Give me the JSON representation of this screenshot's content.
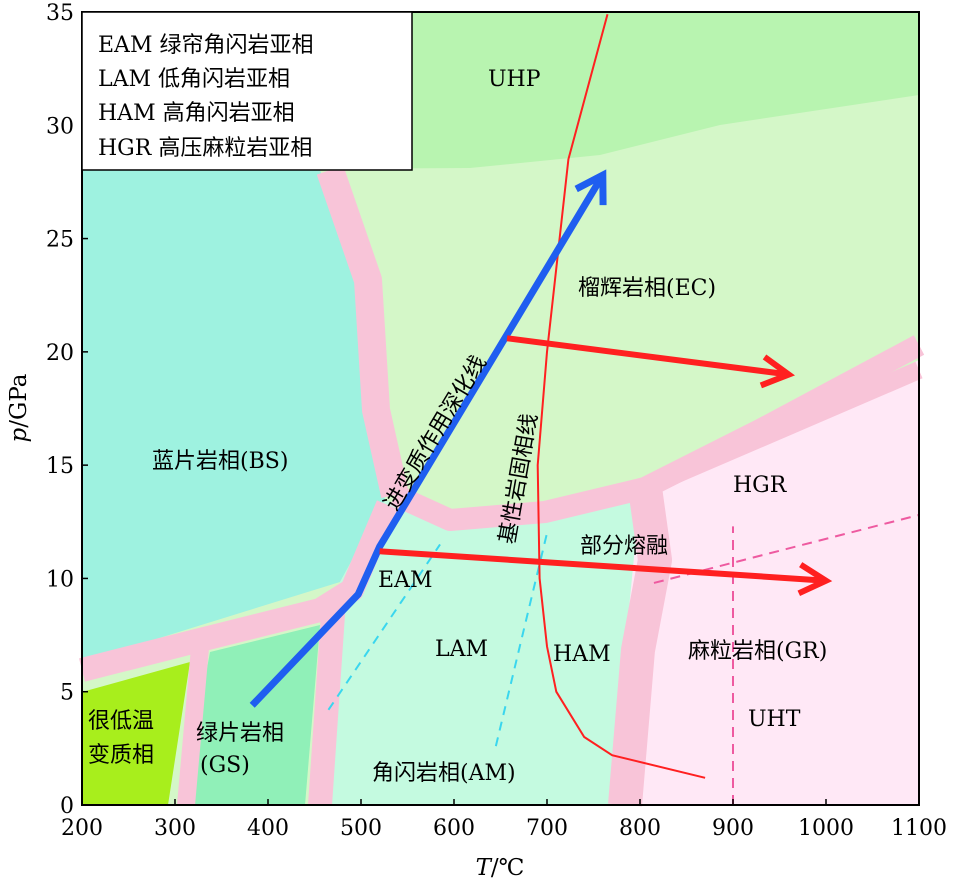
{
  "chart_data": {
    "type": "diagram",
    "x_axis": {
      "label_italic": "T",
      "label_rest": "/℃",
      "range": [
        200,
        1100
      ],
      "ticks": [
        "200",
        "300",
        "400",
        "500",
        "600",
        "700",
        "800",
        "900",
        "1000",
        "1100"
      ]
    },
    "y_axis": {
      "label_italic": "p",
      "label_rest": "/GPa",
      "range": [
        0,
        35
      ],
      "ticks": [
        "0",
        "5",
        "10",
        "15",
        "20",
        "25",
        "30",
        "35"
      ]
    },
    "legend": [
      "EAM 绿帘角闪岩亚相",
      "LAM 低角闪岩亚相",
      "HAM 高角闪岩亚相",
      "HGR 高压麻粒岩亚相"
    ],
    "facies_labels": {
      "uhp": "UHP",
      "ec": "榴辉岩相(EC)",
      "bs": "蓝片岩相(BS)",
      "hgr": "HGR",
      "eam": "EAM",
      "lam": "LAM",
      "ham": "HAM",
      "gr": "麻粒岩相(GR)",
      "uht": "UHT",
      "very_low_1": "很低温",
      "very_low_2": "变质相",
      "gs_1": "绿片岩相",
      "gs_2": "(GS)",
      "am": "角闪岩相(AM)",
      "partial_melting": "部分熔融",
      "prograde_line": "进变质作用深化线",
      "solidus_line": "基性岩固相线"
    },
    "colors": {
      "uhp": "#b8f4b0",
      "ec": "#d4f7c8",
      "bs": "#9ef2e0",
      "am": "#c4fae0",
      "gr": "#ffe8f6",
      "very_low": "#a8ee1c",
      "gs": "#90f0b8",
      "boundary": "#f8c4d8",
      "prograde": "#1f5ef0",
      "arrows": "#ff2020",
      "solidus": "#ff2020",
      "cyan_dashed": "#3ad6ee",
      "pink_dashed": "#ee5aa0"
    },
    "series": [
      {
        "id": "prograde",
        "points": [
          [
            383,
            4.4
          ],
          [
            497,
            9.3
          ],
          [
            520,
            11.4
          ],
          [
            760,
            27.8
          ]
        ]
      },
      {
        "id": "solidus",
        "points": [
          [
            765,
            34.9
          ],
          [
            723,
            28.5
          ],
          [
            700,
            20
          ],
          [
            690,
            15
          ],
          [
            692,
            10
          ],
          [
            700,
            7
          ],
          [
            710,
            5
          ],
          [
            740,
            3
          ],
          [
            770,
            2.2
          ],
          [
            870,
            1.2
          ]
        ]
      },
      {
        "id": "arrow-upper",
        "points": [
          [
            657,
            20.6
          ],
          [
            960,
            19
          ]
        ]
      },
      {
        "id": "arrow-lower",
        "points": [
          [
            520,
            11.2
          ],
          [
            1000,
            9.9
          ]
        ]
      },
      {
        "id": "cyan-dashed",
        "points": [
          [
            465,
            4.2
          ],
          [
            585,
            11.5
          ]
        ]
      },
      {
        "id": "cyan-dashed-2",
        "points": [
          [
            645,
            2.6
          ],
          [
            700,
            12
          ]
        ]
      },
      {
        "id": "pink-dashed-v",
        "points": [
          [
            900,
            0
          ],
          [
            900,
            12.3
          ]
        ]
      },
      {
        "id": "pink-dashed-s",
        "points": [
          [
            815,
            9.8
          ],
          [
            1100,
            12.8
          ]
        ]
      }
    ]
  }
}
